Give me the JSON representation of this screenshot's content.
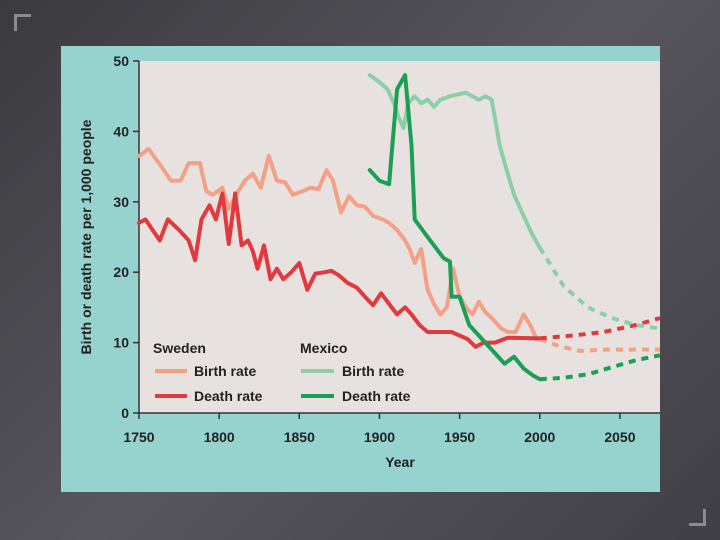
{
  "chart_data": {
    "type": "line",
    "title": "",
    "xlabel": "Year",
    "ylabel": "Birth or death rate per 1,000 people",
    "xlim": [
      1750,
      2075
    ],
    "ylim": [
      0,
      50
    ],
    "x_ticks": [
      1750,
      1800,
      1850,
      1900,
      1950,
      2000,
      2050
    ],
    "y_ticks": [
      0,
      10,
      20,
      30,
      40,
      50
    ],
    "grid": false,
    "legend": {
      "placement": "bottom-left",
      "groups": [
        {
          "title": "Sweden",
          "entries": [
            "Birth rate",
            "Death rate"
          ]
        },
        {
          "title": "Mexico",
          "entries": [
            "Birth rate",
            "Death rate"
          ]
        }
      ]
    },
    "series": [
      {
        "name": "Sweden Birth rate",
        "color": "#f2a187",
        "points": [
          [
            1750,
            36.5
          ],
          [
            1756,
            37.5
          ],
          [
            1764,
            35
          ],
          [
            1770,
            33
          ],
          [
            1776,
            33
          ],
          [
            1781,
            35.5
          ],
          [
            1788,
            35.5
          ],
          [
            1792,
            31.5
          ],
          [
            1796,
            31
          ],
          [
            1802,
            32
          ],
          [
            1806,
            29
          ],
          [
            1812,
            31.5
          ],
          [
            1816,
            33
          ],
          [
            1821,
            34
          ],
          [
            1826,
            32
          ],
          [
            1831,
            36.5
          ],
          [
            1836,
            33
          ],
          [
            1841,
            32.8
          ],
          [
            1846,
            31
          ],
          [
            1852,
            31.5
          ],
          [
            1857,
            32
          ],
          [
            1862,
            31.8
          ],
          [
            1867,
            34.5
          ],
          [
            1871,
            33
          ],
          [
            1876,
            28.5
          ],
          [
            1881,
            30.8
          ],
          [
            1886,
            29.5
          ],
          [
            1891,
            29.3
          ],
          [
            1896,
            28
          ],
          [
            1902,
            27.5
          ],
          [
            1906,
            27
          ],
          [
            1911,
            26
          ],
          [
            1916,
            24.5
          ],
          [
            1919,
            23.2
          ],
          [
            1922,
            21.3
          ],
          [
            1926,
            23.3
          ],
          [
            1930,
            17.5
          ],
          [
            1934,
            15.5
          ],
          [
            1938,
            14
          ],
          [
            1942,
            15
          ],
          [
            1946,
            20.5
          ],
          [
            1950,
            16.5
          ],
          [
            1954,
            15
          ],
          [
            1958,
            14
          ],
          [
            1962,
            15.8
          ],
          [
            1966,
            14.3
          ],
          [
            1970,
            13.5
          ],
          [
            1976,
            12
          ],
          [
            1980,
            11.5
          ],
          [
            1985,
            11.5
          ],
          [
            1990,
            14
          ],
          [
            1994,
            12.5
          ],
          [
            1998,
            10.5
          ]
        ],
        "projection": [
          [
            2000,
            10.5
          ],
          [
            2012,
            9.5
          ],
          [
            2025,
            8.8
          ],
          [
            2040,
            9
          ],
          [
            2060,
            9
          ],
          [
            2075,
            9
          ]
        ]
      },
      {
        "name": "Sweden Death rate",
        "color": "#e03a3e",
        "points": [
          [
            1750,
            27
          ],
          [
            1754,
            27.5
          ],
          [
            1763,
            24.5
          ],
          [
            1768,
            27.5
          ],
          [
            1775,
            26
          ],
          [
            1781,
            24.5
          ],
          [
            1785,
            21.7
          ],
          [
            1789,
            27.5
          ],
          [
            1794,
            29.5
          ],
          [
            1798,
            27.5
          ],
          [
            1802,
            31.2
          ],
          [
            1806,
            24
          ],
          [
            1810,
            31.2
          ],
          [
            1814,
            23.8
          ],
          [
            1818,
            24.5
          ],
          [
            1821,
            23
          ],
          [
            1824,
            20.5
          ],
          [
            1828,
            23.8
          ],
          [
            1832,
            19
          ],
          [
            1836,
            20.5
          ],
          [
            1840,
            19
          ],
          [
            1845,
            20
          ],
          [
            1850,
            21.3
          ],
          [
            1855,
            17.5
          ],
          [
            1860,
            19.8
          ],
          [
            1866,
            20
          ],
          [
            1870,
            20.2
          ],
          [
            1875,
            19.5
          ],
          [
            1880,
            18.5
          ],
          [
            1886,
            17.8
          ],
          [
            1891,
            16.5
          ],
          [
            1896,
            15.3
          ],
          [
            1901,
            17
          ],
          [
            1906,
            15.5
          ],
          [
            1911,
            14
          ],
          [
            1916,
            15
          ],
          [
            1920,
            14
          ],
          [
            1925,
            12.5
          ],
          [
            1930,
            11.5
          ],
          [
            1945,
            11.5
          ],
          [
            1955,
            10.5
          ],
          [
            1960,
            9.4
          ],
          [
            1965,
            10
          ],
          [
            1972,
            10
          ],
          [
            1980,
            10.7
          ],
          [
            2000,
            10.6
          ]
        ],
        "projection": [
          [
            2000,
            10.6
          ],
          [
            2020,
            11
          ],
          [
            2040,
            11.5
          ],
          [
            2060,
            12.5
          ],
          [
            2075,
            13.5
          ]
        ]
      },
      {
        "name": "Mexico Birth rate",
        "color": "#8ccfa6",
        "points": [
          [
            1894,
            48
          ],
          [
            1900,
            47
          ],
          [
            1905,
            46
          ],
          [
            1909,
            44
          ],
          [
            1912,
            42
          ],
          [
            1915,
            40.5
          ],
          [
            1918,
            44
          ],
          [
            1922,
            45
          ],
          [
            1926,
            44
          ],
          [
            1930,
            44.5
          ],
          [
            1934,
            43.5
          ],
          [
            1938,
            44.5
          ],
          [
            1944,
            45
          ],
          [
            1950,
            45.3
          ],
          [
            1954,
            45.5
          ],
          [
            1958,
            45
          ],
          [
            1962,
            44.5
          ],
          [
            1966,
            45
          ],
          [
            1970,
            44.5
          ],
          [
            1975,
            38
          ],
          [
            1980,
            34
          ],
          [
            1984,
            31
          ],
          [
            1990,
            28
          ],
          [
            1995,
            25.5
          ],
          [
            2000,
            23.5
          ]
        ],
        "projection": [
          [
            2000,
            23.5
          ],
          [
            2015,
            18
          ],
          [
            2030,
            15
          ],
          [
            2045,
            13.5
          ],
          [
            2060,
            12.5
          ],
          [
            2075,
            12
          ]
        ]
      },
      {
        "name": "Mexico Death rate",
        "color": "#1aa055",
        "points": [
          [
            1894,
            34.5
          ],
          [
            1900,
            33
          ],
          [
            1906,
            32.5
          ],
          [
            1911,
            46
          ],
          [
            1916,
            48
          ],
          [
            1920,
            38
          ],
          [
            1922,
            27.5
          ],
          [
            1930,
            25
          ],
          [
            1935,
            23.5
          ],
          [
            1940,
            22
          ],
          [
            1944,
            21.5
          ],
          [
            1945,
            16.5
          ],
          [
            1950,
            16.5
          ],
          [
            1956,
            12.5
          ],
          [
            1962,
            11
          ],
          [
            1970,
            9
          ],
          [
            1978,
            7
          ],
          [
            1984,
            8
          ],
          [
            1990,
            6.3
          ],
          [
            1996,
            5.3
          ],
          [
            2000,
            4.8
          ]
        ],
        "projection": [
          [
            2000,
            4.8
          ],
          [
            2015,
            5
          ],
          [
            2030,
            5.5
          ],
          [
            2045,
            6.5
          ],
          [
            2060,
            7.5
          ],
          [
            2075,
            8.2
          ]
        ]
      }
    ]
  }
}
